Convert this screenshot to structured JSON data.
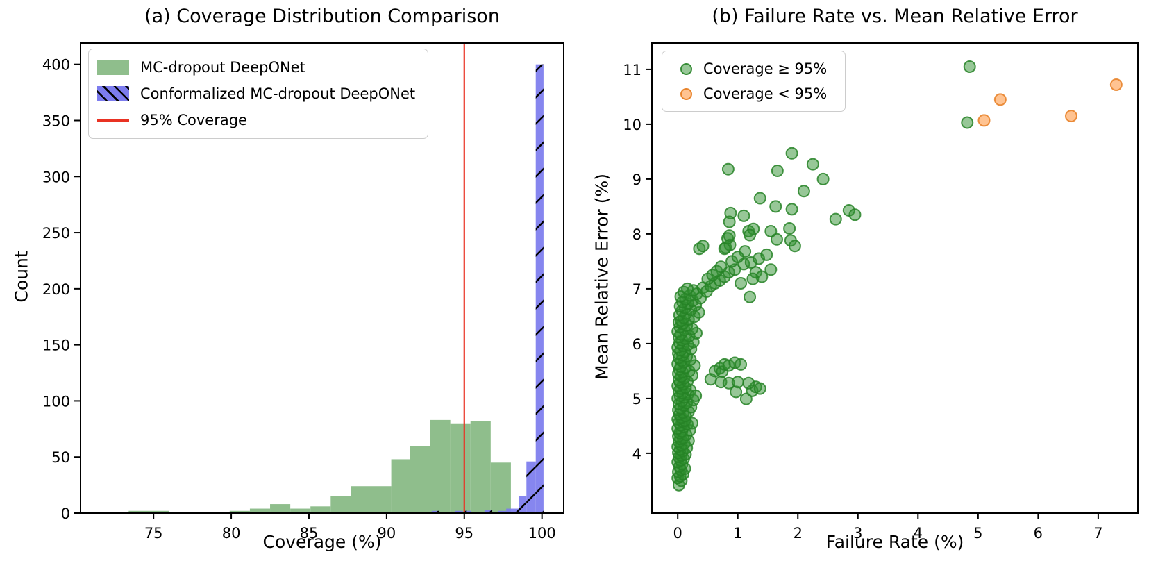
{
  "figure": {
    "background": "#ffffff",
    "text_color": "#000000"
  },
  "chart_data": [
    {
      "type": "bar",
      "subtype": "histogram",
      "title": "(a) Coverage Distribution Comparison",
      "xlabel": "Coverage (%)",
      "ylabel": "Count",
      "xlim": [
        70.3,
        101.4
      ],
      "ylim": [
        0,
        419
      ],
      "xticks": [
        75,
        80,
        85,
        90,
        95,
        100
      ],
      "yticks": [
        0,
        50,
        100,
        150,
        200,
        250,
        300,
        350,
        400
      ],
      "grid": false,
      "legend_position": "upper left",
      "series": [
        {
          "name": "MC-dropout DeepONet",
          "color": "#8fbe8c",
          "bars": [
            [
              72.1,
              73.4,
              1
            ],
            [
              73.4,
              74.7,
              2
            ],
            [
              74.7,
              76.0,
              2
            ],
            [
              76.0,
              77.3,
              1
            ],
            [
              79.9,
              81.2,
              2
            ],
            [
              81.2,
              82.5,
              4
            ],
            [
              82.5,
              83.8,
              8
            ],
            [
              83.8,
              85.1,
              4
            ],
            [
              85.1,
              86.4,
              6
            ],
            [
              86.4,
              87.7,
              15
            ],
            [
              87.7,
              89.0,
              24
            ],
            [
              89.0,
              90.3,
              24
            ],
            [
              90.3,
              91.5,
              48
            ],
            [
              91.5,
              92.8,
              60
            ],
            [
              92.8,
              94.1,
              83
            ],
            [
              94.1,
              95.4,
              80
            ],
            [
              95.4,
              96.7,
              82
            ],
            [
              96.7,
              98.0,
              45
            ]
          ]
        },
        {
          "name": "Conformalized MC-dropout DeepONet",
          "color": "#7c7cee",
          "hatch": "/",
          "hatch_color": "#000000",
          "bars": [
            [
              92.9,
              93.4,
              2
            ],
            [
              94.4,
              94.9,
              2
            ],
            [
              95.0,
              95.45,
              2
            ],
            [
              96.3,
              96.8,
              3
            ],
            [
              97.2,
              97.7,
              2
            ],
            [
              97.7,
              98.5,
              4
            ],
            [
              98.5,
              99.0,
              15
            ],
            [
              99.0,
              99.6,
              46
            ],
            [
              99.6,
              100.1,
              400
            ]
          ]
        }
      ],
      "vline": {
        "x": 95,
        "color": "#e93223",
        "label": "95% Coverage"
      }
    },
    {
      "type": "scatter",
      "title": "(b) Failure Rate vs. Mean Relative Error",
      "xlabel": "Failure Rate (%)",
      "ylabel": "Mean Relative Error (%)",
      "xlim": [
        -0.43,
        7.66
      ],
      "ylim": [
        2.91,
        11.48
      ],
      "xticks": [
        0,
        1,
        2,
        3,
        4,
        5,
        6,
        7
      ],
      "yticks": [
        4,
        5,
        6,
        7,
        8,
        9,
        10,
        11
      ],
      "grid": false,
      "legend_position": "upper left",
      "marker_radius": 8,
      "series": [
        {
          "name": "Coverage ≥ 95%",
          "fill": "#2f8f2f",
          "edge": "#268226",
          "points": [
            [
              0.02,
              3.42
            ],
            [
              0.06,
              3.5
            ],
            [
              0.0,
              3.55
            ],
            [
              0.04,
              3.58
            ],
            [
              0.09,
              3.62
            ],
            [
              0.01,
              3.66
            ],
            [
              0.05,
              3.7
            ],
            [
              0.12,
              3.72
            ],
            [
              0.03,
              3.76
            ],
            [
              0.07,
              3.8
            ],
            [
              0.0,
              3.84
            ],
            [
              0.05,
              3.87
            ],
            [
              0.1,
              3.9
            ],
            [
              0.02,
              3.93
            ],
            [
              0.06,
              3.96
            ],
            [
              0.13,
              3.98
            ],
            [
              0.01,
              4.01
            ],
            [
              0.08,
              4.04
            ],
            [
              0.04,
              4.07
            ],
            [
              0.15,
              4.1
            ],
            [
              0.0,
              4.12
            ],
            [
              0.06,
              4.15
            ],
            [
              0.11,
              4.18
            ],
            [
              0.02,
              4.21
            ],
            [
              0.18,
              4.23
            ],
            [
              0.05,
              4.26
            ],
            [
              0.09,
              4.28
            ],
            [
              0.01,
              4.31
            ],
            [
              0.14,
              4.34
            ],
            [
              0.03,
              4.37
            ],
            [
              0.07,
              4.4
            ],
            [
              0.2,
              4.42
            ],
            [
              0.0,
              4.45
            ],
            [
              0.1,
              4.48
            ],
            [
              0.05,
              4.51
            ],
            [
              0.16,
              4.53
            ],
            [
              0.02,
              4.56
            ],
            [
              0.08,
              4.58
            ],
            [
              0.24,
              4.55
            ],
            [
              0.12,
              4.6
            ],
            [
              0.0,
              4.62
            ],
            [
              0.06,
              4.65
            ],
            [
              0.13,
              4.68
            ],
            [
              0.03,
              4.71
            ],
            [
              0.09,
              4.74
            ],
            [
              0.18,
              4.76
            ],
            [
              0.01,
              4.79
            ],
            [
              0.05,
              4.82
            ],
            [
              0.22,
              4.84
            ],
            [
              0.1,
              4.87
            ],
            [
              0.02,
              4.9
            ],
            [
              0.15,
              4.92
            ],
            [
              0.07,
              4.95
            ],
            [
              0.26,
              4.97
            ],
            [
              0.0,
              5.0
            ],
            [
              0.11,
              5.02
            ],
            [
              0.04,
              5.05
            ],
            [
              0.17,
              5.08
            ],
            [
              0.08,
              5.1
            ],
            [
              0.02,
              5.13
            ],
            [
              0.21,
              5.15
            ],
            [
              0.05,
              5.18
            ],
            [
              0.13,
              5.2
            ],
            [
              0.3,
              5.05
            ],
            [
              0.0,
              5.23
            ],
            [
              0.09,
              5.26
            ],
            [
              0.04,
              5.29
            ],
            [
              0.16,
              5.31
            ],
            [
              0.02,
              5.34
            ],
            [
              0.11,
              5.37
            ],
            [
              0.06,
              5.4
            ],
            [
              0.24,
              5.42
            ],
            [
              0.01,
              5.45
            ],
            [
              0.08,
              5.48
            ],
            [
              0.19,
              5.5
            ],
            [
              0.03,
              5.53
            ],
            [
              0.13,
              5.56
            ],
            [
              0.05,
              5.58
            ],
            [
              0.28,
              5.6
            ],
            [
              0.0,
              5.63
            ],
            [
              0.1,
              5.66
            ],
            [
              0.06,
              5.69
            ],
            [
              0.21,
              5.71
            ],
            [
              0.02,
              5.74
            ],
            [
              0.15,
              5.77
            ],
            [
              0.08,
              5.79
            ],
            [
              0.01,
              5.82
            ],
            [
              0.12,
              5.85
            ],
            [
              0.05,
              5.88
            ],
            [
              0.22,
              5.9
            ],
            [
              0.0,
              5.93
            ],
            [
              0.09,
              5.96
            ],
            [
              0.17,
              5.98
            ],
            [
              0.03,
              6.01
            ],
            [
              0.26,
              6.03
            ],
            [
              0.07,
              6.06
            ],
            [
              0.13,
              6.09
            ],
            [
              0.02,
              6.12
            ],
            [
              0.19,
              6.14
            ],
            [
              0.05,
              6.17
            ],
            [
              0.31,
              6.19
            ],
            [
              0.0,
              6.22
            ],
            [
              0.11,
              6.25
            ],
            [
              0.24,
              6.27
            ],
            [
              0.04,
              6.3
            ],
            [
              0.15,
              6.33
            ],
            [
              0.08,
              6.36
            ],
            [
              0.02,
              6.39
            ],
            [
              0.06,
              6.42
            ],
            [
              0.18,
              6.44
            ],
            [
              0.1,
              6.47
            ],
            [
              0.28,
              6.49
            ],
            [
              0.03,
              6.52
            ],
            [
              0.14,
              6.55
            ],
            [
              0.35,
              6.57
            ],
            [
              0.07,
              6.6
            ],
            [
              0.22,
              6.62
            ],
            [
              0.12,
              6.65
            ],
            [
              0.04,
              6.68
            ],
            [
              0.3,
              6.7
            ],
            [
              0.17,
              6.73
            ],
            [
              0.08,
              6.76
            ],
            [
              0.25,
              6.78
            ],
            [
              0.13,
              6.81
            ],
            [
              0.38,
              6.83
            ],
            [
              0.05,
              6.86
            ],
            [
              0.2,
              6.88
            ],
            [
              0.32,
              6.91
            ],
            [
              0.1,
              6.94
            ],
            [
              0.26,
              6.97
            ],
            [
              0.16,
              7.0
            ],
            [
              0.42,
              7.02
            ],
            [
              0.48,
              6.95
            ],
            [
              0.55,
              7.05
            ],
            [
              0.62,
              7.1
            ],
            [
              0.5,
              7.18
            ],
            [
              0.7,
              7.15
            ],
            [
              0.58,
              7.25
            ],
            [
              0.78,
              7.22
            ],
            [
              0.65,
              7.32
            ],
            [
              0.85,
              7.3
            ],
            [
              0.95,
              7.35
            ],
            [
              0.72,
              7.4
            ],
            [
              1.05,
              7.1
            ],
            [
              1.2,
              6.85
            ],
            [
              1.1,
              7.45
            ],
            [
              1.22,
              7.48
            ],
            [
              0.9,
              7.5
            ],
            [
              1.3,
              7.3
            ],
            [
              1.4,
              7.22
            ],
            [
              1.35,
              7.55
            ],
            [
              1.48,
              7.62
            ],
            [
              1.12,
              7.68
            ],
            [
              0.8,
              7.75
            ],
            [
              0.87,
              7.8
            ],
            [
              0.78,
              7.73
            ],
            [
              1.0,
              7.58
            ],
            [
              1.55,
              7.35
            ],
            [
              1.25,
              7.18
            ],
            [
              0.36,
              7.73
            ],
            [
              0.42,
              7.78
            ],
            [
              0.83,
              7.92
            ],
            [
              0.86,
              7.97
            ],
            [
              1.18,
              8.05
            ],
            [
              1.26,
              8.09
            ],
            [
              1.2,
              7.98
            ],
            [
              1.65,
              7.9
            ],
            [
              1.88,
              7.88
            ],
            [
              1.95,
              7.78
            ],
            [
              1.86,
              8.1
            ],
            [
              1.55,
              8.05
            ],
            [
              0.88,
              8.38
            ],
            [
              0.86,
              8.22
            ],
            [
              1.1,
              8.33
            ],
            [
              1.63,
              8.5
            ],
            [
              1.9,
              8.45
            ],
            [
              1.37,
              8.65
            ],
            [
              2.1,
              8.78
            ],
            [
              2.85,
              8.43
            ],
            [
              2.95,
              8.35
            ],
            [
              2.63,
              8.27
            ],
            [
              1.66,
              9.15
            ],
            [
              1.9,
              9.47
            ],
            [
              2.25,
              9.27
            ],
            [
              2.42,
              9.0
            ],
            [
              0.84,
              9.18
            ],
            [
              0.55,
              5.35
            ],
            [
              0.62,
              5.5
            ],
            [
              0.7,
              5.55
            ],
            [
              0.74,
              5.49
            ],
            [
              0.78,
              5.62
            ],
            [
              0.85,
              5.6
            ],
            [
              0.95,
              5.65
            ],
            [
              1.05,
              5.62
            ],
            [
              0.72,
              5.3
            ],
            [
              0.85,
              5.28
            ],
            [
              0.97,
              5.12
            ],
            [
              1.0,
              5.3
            ],
            [
              1.14,
              4.99
            ],
            [
              1.24,
              5.14
            ],
            [
              1.3,
              5.21
            ],
            [
              1.37,
              5.18
            ],
            [
              1.18,
              5.28
            ],
            [
              4.86,
              11.05
            ],
            [
              4.82,
              10.03
            ]
          ]
        },
        {
          "name": "Coverage < 95%",
          "fill": "#ff8823",
          "edge": "#e67e22",
          "points": [
            [
              5.1,
              10.07
            ],
            [
              5.37,
              10.45
            ],
            [
              6.55,
              10.15
            ],
            [
              7.3,
              10.72
            ]
          ]
        }
      ]
    }
  ]
}
